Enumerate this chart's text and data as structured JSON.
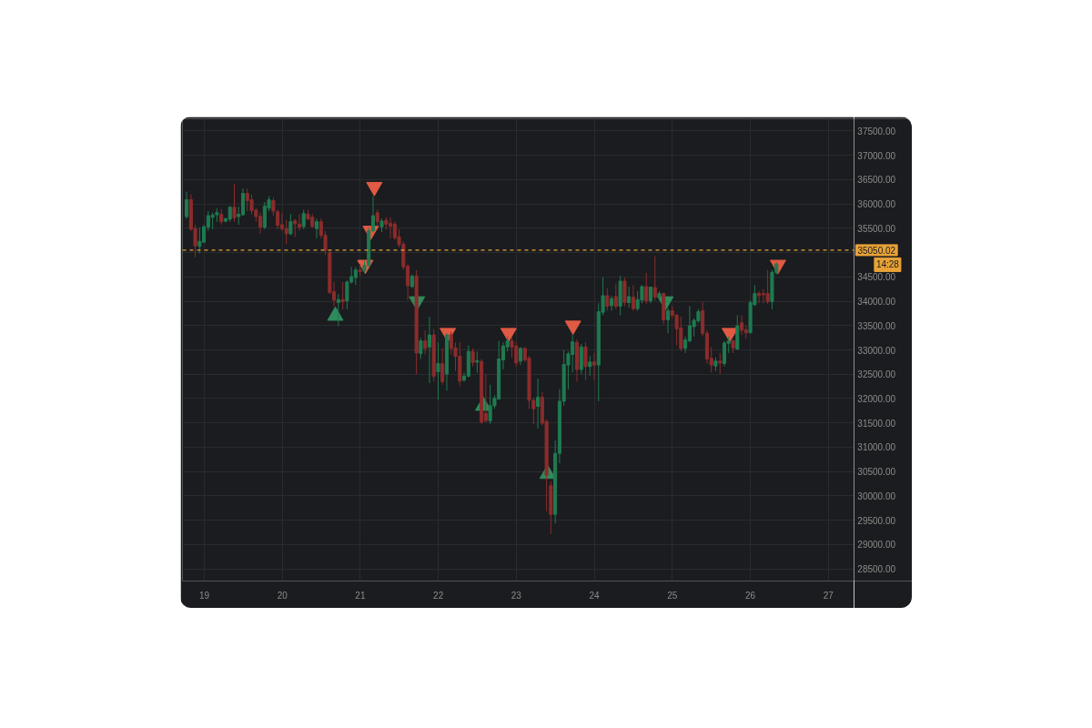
{
  "chart_data": {
    "type": "candlestick",
    "x": [
      18.773,
      18.829,
      18.884,
      18.94,
      18.995,
      19.051,
      19.107,
      19.162,
      19.218,
      19.273,
      19.329,
      19.385,
      19.44,
      19.496,
      19.551,
      19.607,
      19.663,
      19.718,
      19.774,
      19.829,
      19.885,
      19.941,
      19.996,
      20.052,
      20.107,
      20.163,
      20.219,
      20.274,
      20.33,
      20.385,
      20.441,
      20.497,
      20.552,
      20.608,
      20.663,
      20.719,
      20.775,
      20.83,
      20.886,
      20.941,
      20.997,
      21.053,
      21.108,
      21.164,
      21.219,
      21.275,
      21.331,
      21.386,
      21.442,
      21.497,
      21.553,
      21.609,
      21.664,
      21.72,
      21.775,
      21.831,
      21.887,
      21.942,
      21.998,
      22.053,
      22.109,
      22.165,
      22.22,
      22.276,
      22.331,
      22.387,
      22.443,
      22.498,
      22.554,
      22.609,
      22.665,
      22.721,
      22.776,
      22.832,
      22.887,
      22.943,
      22.999,
      23.054,
      23.11,
      23.165,
      23.221,
      23.277,
      23.332,
      23.388,
      23.443,
      23.499,
      23.555,
      23.61,
      23.666,
      23.721,
      23.777,
      23.833,
      23.888,
      23.944,
      23.999,
      24.055,
      24.111,
      24.166,
      24.222,
      24.277,
      24.333,
      24.389,
      24.444,
      24.5,
      24.555,
      24.611,
      24.667,
      24.722,
      24.778,
      24.833,
      24.889,
      24.945,
      25.0,
      25.056,
      25.111,
      25.167,
      25.223,
      25.278,
      25.334,
      25.389,
      25.445,
      25.501,
      25.556,
      25.612,
      25.667,
      25.723,
      25.779,
      25.834,
      25.89,
      25.945,
      26.001,
      26.057,
      26.112,
      26.168,
      26.223,
      26.279,
      26.335
    ],
    "ohlc": [
      [
        35739,
        36254,
        35696,
        36087
      ],
      [
        36087,
        36192,
        35448,
        35479
      ],
      [
        35491,
        35572,
        34902,
        35138
      ],
      [
        35126,
        35510,
        34983,
        35231
      ],
      [
        35213,
        35572,
        35200,
        35529
      ],
      [
        35522,
        35851,
        35448,
        35758
      ],
      [
        35727,
        35820,
        35479,
        35770
      ],
      [
        35776,
        35913,
        35634,
        35820
      ],
      [
        35789,
        35894,
        35572,
        35634
      ],
      [
        35646,
        35720,
        35620,
        35696
      ],
      [
        35684,
        35956,
        35634,
        35932
      ],
      [
        35932,
        36409,
        35634,
        35715
      ],
      [
        35739,
        35944,
        35572,
        35789
      ],
      [
        35777,
        36316,
        35758,
        36217
      ],
      [
        36217,
        36316,
        35851,
        36068
      ],
      [
        36087,
        36192,
        35789,
        35863
      ],
      [
        35870,
        35913,
        35634,
        35739
      ],
      [
        35746,
        35820,
        35386,
        35522
      ],
      [
        35522,
        36037,
        35479,
        35956
      ],
      [
        35913,
        36161,
        35851,
        36087
      ],
      [
        36068,
        36130,
        35758,
        35851
      ],
      [
        35839,
        35882,
        35479,
        35560
      ],
      [
        35572,
        35820,
        35448,
        35491
      ],
      [
        35491,
        35665,
        35169,
        35386
      ],
      [
        35386,
        35789,
        35355,
        35634
      ],
      [
        35653,
        35696,
        35324,
        35591
      ],
      [
        35584,
        35789,
        35448,
        35522
      ],
      [
        35535,
        35882,
        35479,
        35801
      ],
      [
        35789,
        35882,
        35665,
        35696
      ],
      [
        35727,
        35789,
        35510,
        35535
      ],
      [
        35491,
        35696,
        35293,
        35634
      ],
      [
        35634,
        35696,
        35293,
        35355
      ],
      [
        35355,
        35448,
        34952,
        35045
      ],
      [
        34998,
        35045,
        34146,
        34177
      ],
      [
        34196,
        34394,
        33898,
        34022
      ],
      [
        33972,
        34146,
        33495,
        34034
      ],
      [
        34034,
        34394,
        33836,
        33991
      ],
      [
        34010,
        34425,
        33836,
        34394
      ],
      [
        34394,
        34704,
        34363,
        34506
      ],
      [
        34487,
        34704,
        34332,
        34642
      ],
      [
        34642,
        34766,
        34518,
        34611
      ],
      [
        34630,
        34828,
        34580,
        34735
      ],
      [
        34735,
        35510,
        34704,
        35448
      ],
      [
        35448,
        36161,
        35417,
        35758
      ],
      [
        35820,
        35882,
        35541,
        35634
      ],
      [
        35529,
        35696,
        35417,
        35646
      ],
      [
        35665,
        35727,
        35479,
        35584
      ],
      [
        35603,
        35727,
        35293,
        35541
      ],
      [
        35584,
        35634,
        35262,
        35305
      ],
      [
        35324,
        35479,
        35107,
        35163
      ],
      [
        35175,
        35231,
        34642,
        34704
      ],
      [
        34716,
        34766,
        34022,
        34320
      ],
      [
        34301,
        34549,
        34270,
        34518
      ],
      [
        34518,
        34642,
        32503,
        32937
      ],
      [
        32925,
        33247,
        32813,
        33185
      ],
      [
        33185,
        33402,
        32906,
        33030
      ],
      [
        33060,
        33681,
        32317,
        33309
      ],
      [
        33309,
        33433,
        32348,
        32460
      ],
      [
        32553,
        33154,
        31976,
        32720
      ],
      [
        32720,
        33030,
        32286,
        32348
      ],
      [
        32503,
        33340,
        32162,
        33309
      ],
      [
        33309,
        33371,
        32906,
        33030
      ],
      [
        33042,
        33154,
        32565,
        32869
      ],
      [
        32869,
        33154,
        32255,
        32360
      ],
      [
        32379,
        32534,
        32348,
        32460
      ],
      [
        32460,
        33092,
        32441,
        32968
      ],
      [
        32968,
        33030,
        32658,
        32739
      ],
      [
        32751,
        32968,
        32534,
        32782
      ],
      [
        32763,
        32813,
        31480,
        31511
      ],
      [
        31697,
        32503,
        31511,
        31542
      ],
      [
        31542,
        32286,
        31480,
        31852
      ],
      [
        31852,
        32069,
        31790,
        32007
      ],
      [
        31988,
        33185,
        31976,
        32813
      ],
      [
        32794,
        33154,
        32596,
        33080
      ],
      [
        33060,
        33278,
        32968,
        33185
      ],
      [
        33185,
        33278,
        32844,
        33060
      ],
      [
        33080,
        33154,
        32658,
        32732
      ],
      [
        32770,
        33061,
        32689,
        33030
      ],
      [
        33030,
        33061,
        32751,
        32794
      ],
      [
        32832,
        32875,
        31790,
        31964
      ],
      [
        31964,
        32007,
        31480,
        31790
      ],
      [
        31840,
        32410,
        31387,
        32026
      ],
      [
        32026,
        32131,
        31449,
        31492
      ],
      [
        31530,
        31573,
        29682,
        30426
      ],
      [
        30209,
        30302,
        29217,
        29620
      ],
      [
        29620,
        31139,
        29434,
        30873
      ],
      [
        30873,
        32193,
        30674,
        31945
      ],
      [
        31945,
        32999,
        31852,
        32701
      ],
      [
        32689,
        32968,
        32193,
        32918
      ],
      [
        32906,
        33309,
        32534,
        33166
      ],
      [
        33154,
        33216,
        32348,
        32596
      ],
      [
        32596,
        33123,
        32503,
        33061
      ],
      [
        33061,
        33154,
        32379,
        32658
      ],
      [
        32658,
        32875,
        32472,
        32751
      ],
      [
        32751,
        32937,
        32379,
        32689
      ],
      [
        32689,
        33960,
        31945,
        33786
      ],
      [
        33774,
        34487,
        33712,
        34115
      ],
      [
        34115,
        34270,
        33805,
        33898
      ],
      [
        33910,
        34115,
        33805,
        34053
      ],
      [
        34096,
        34363,
        33836,
        33898
      ],
      [
        33898,
        34518,
        33712,
        34413
      ],
      [
        34413,
        34487,
        33898,
        33972
      ],
      [
        33972,
        34301,
        33867,
        34096
      ],
      [
        34084,
        34332,
        33805,
        33848
      ],
      [
        33848,
        34208,
        33805,
        34034
      ],
      [
        34022,
        34332,
        33960,
        34301
      ],
      [
        34301,
        34580,
        33948,
        34010
      ],
      [
        34010,
        34301,
        33960,
        34289
      ],
      [
        34282,
        34921,
        34022,
        34084
      ],
      [
        34084,
        34208,
        34053,
        34158
      ],
      [
        34158,
        34177,
        33526,
        33619
      ],
      [
        33619,
        33867,
        33340,
        33805
      ],
      [
        33805,
        33898,
        33650,
        33712
      ],
      [
        33712,
        33743,
        33092,
        33433
      ],
      [
        33452,
        33681,
        32968,
        33030
      ],
      [
        33030,
        33278,
        32937,
        33204
      ],
      [
        33185,
        33898,
        33154,
        33495
      ],
      [
        33476,
        33650,
        33278,
        33607
      ],
      [
        33600,
        33836,
        33557,
        33786
      ],
      [
        33805,
        33991,
        33278,
        33340
      ],
      [
        33340,
        33402,
        32720,
        32813
      ],
      [
        32825,
        33061,
        32534,
        32689
      ],
      [
        32670,
        32844,
        32565,
        32770
      ],
      [
        32770,
        32937,
        32503,
        32732
      ],
      [
        32720,
        33185,
        32658,
        33142
      ],
      [
        33135,
        33278,
        32937,
        33185
      ],
      [
        33185,
        33216,
        32937,
        33042
      ],
      [
        33018,
        33712,
        32999,
        33495
      ],
      [
        33557,
        33712,
        33309,
        33402
      ],
      [
        33414,
        33495,
        33228,
        33352
      ],
      [
        33352,
        34022,
        33340,
        33972
      ],
      [
        33929,
        34332,
        33898,
        34158
      ],
      [
        34158,
        34208,
        33960,
        34115
      ],
      [
        34158,
        34239,
        33960,
        34134
      ],
      [
        34158,
        34642,
        33948,
        33991
      ],
      [
        33991,
        34642,
        33836,
        34592
      ],
      [
        34592,
        34797,
        34549,
        34766
      ]
    ],
    "colors": [
      "#1f7a50",
      "#8b2c2c",
      "#8b2c2c",
      "#1f7a50",
      "#1f7a50",
      "#1f7a50",
      "#1f7a50",
      "#1f7a50",
      "#8b2c2c",
      "#1f7a50",
      "#1f7a50",
      "#8b2c2c",
      "#1f7a50",
      "#1f7a50",
      "#8b2c2c",
      "#8b2c2c",
      "#8b2c2c",
      "#8b2c2c",
      "#1f7a50",
      "#1f7a50",
      "#8b2c2c",
      "#8b2c2c",
      "#8b2c2c",
      "#8b2c2c",
      "#1f7a50",
      "#8b2c2c",
      "#8b2c2c",
      "#1f7a50",
      "#8b2c2c",
      "#8b2c2c",
      "#1f7a50",
      "#8b2c2c",
      "#8b2c2c",
      "#8b2c2c",
      "#8b2c2c",
      "#1f7a50",
      "#8b2c2c",
      "#1f7a50",
      "#1f7a50",
      "#1f7a50",
      "#8b2c2c",
      "#1f7a50",
      "#1f7a50",
      "#1f7a50",
      "#8b2c2c",
      "#1f7a50",
      "#8b2c2c",
      "#8b2c2c",
      "#8b2c2c",
      "#8b2c2c",
      "#8b2c2c",
      "#8b2c2c",
      "#1f7a50",
      "#8b2c2c",
      "#1f7a50",
      "#8b2c2c",
      "#1f7a50",
      "#8b2c2c",
      "#1f7a50",
      "#8b2c2c",
      "#1f7a50",
      "#8b2c2c",
      "#8b2c2c",
      "#8b2c2c",
      "#1f7a50",
      "#1f7a50",
      "#8b2c2c",
      "#1f7a50",
      "#8b2c2c",
      "#8b2c2c",
      "#1f7a50",
      "#1f7a50",
      "#1f7a50",
      "#1f7a50",
      "#1f7a50",
      "#8b2c2c",
      "#8b2c2c",
      "#1f7a50",
      "#8b2c2c",
      "#8b2c2c",
      "#8b2c2c",
      "#1f7a50",
      "#8b2c2c",
      "#8b2c2c",
      "#8b2c2c",
      "#1f7a50",
      "#1f7a50",
      "#1f7a50",
      "#1f7a50",
      "#1f7a50",
      "#8b2c2c",
      "#1f7a50",
      "#8b2c2c",
      "#1f7a50",
      "#8b2c2c",
      "#1f7a50",
      "#1f7a50",
      "#8b2c2c",
      "#1f7a50",
      "#8b2c2c",
      "#1f7a50",
      "#8b2c2c",
      "#1f7a50",
      "#8b2c2c",
      "#1f7a50",
      "#1f7a50",
      "#8b2c2c",
      "#1f7a50",
      "#8b2c2c",
      "#1f7a50",
      "#8b2c2c",
      "#1f7a50",
      "#8b2c2c",
      "#8b2c2c",
      "#8b2c2c",
      "#1f7a50",
      "#1f7a50",
      "#1f7a50",
      "#1f7a50",
      "#8b2c2c",
      "#8b2c2c",
      "#8b2c2c",
      "#1f7a50",
      "#8b2c2c",
      "#1f7a50",
      "#1f7a50",
      "#8b2c2c",
      "#1f7a50",
      "#8b2c2c",
      "#8b2c2c",
      "#1f7a50",
      "#1f7a50",
      "#8b2c2c",
      "#8b2c2c",
      "#8b2c2c",
      "#1f7a50",
      "#1f7a50"
    ],
    "series": [
      {
        "type": "scatter",
        "marker": "triangle",
        "color": "#2f8a5c",
        "x": [
          20.68,
          21.727,
          22.576,
          23.401,
          24.913
        ],
        "values": [
          33700,
          34000,
          31850,
          30450,
          34000
        ]
      },
      {
        "type": "scatter",
        "marker": "triangle",
        "color": "#e05a44",
        "x": [
          21.18,
          21.134,
          21.064,
          22.122,
          22.901,
          23.727,
          25.738,
          26.355
        ],
        "values": [
          36350,
          35450,
          34750,
          33350,
          33350,
          33500,
          33350,
          34750
        ]
      }
    ],
    "xlim": [
      18.72,
      27.33
    ],
    "ylim": [
      28250,
      37750
    ],
    "xticks": [
      19,
      20,
      21,
      22,
      23,
      24,
      25,
      26,
      27
    ],
    "yticks": [
      {
        "value": 28500,
        "label": "28500.00"
      },
      {
        "value": 29000,
        "label": "29000.00"
      },
      {
        "value": 29500,
        "label": "29500.00"
      },
      {
        "value": 30000,
        "label": "30000.00"
      },
      {
        "value": 30500,
        "label": "30500.00"
      },
      {
        "value": 31000,
        "label": "31000.00"
      },
      {
        "value": 31500,
        "label": "31500.00"
      },
      {
        "value": 32000,
        "label": "32000.00"
      },
      {
        "value": 32500,
        "label": "32500.00"
      },
      {
        "value": 33000,
        "label": "33000.00"
      },
      {
        "value": 33500,
        "label": "33500.00"
      },
      {
        "value": 34000,
        "label": "34000.00"
      },
      {
        "value": 34500,
        "label": "34500.00"
      },
      {
        "value": 35000,
        "label": null
      },
      {
        "value": 35500,
        "label": "35500.00"
      },
      {
        "value": 36000,
        "label": "36000.00"
      },
      {
        "value": 36500,
        "label": "36500.00"
      },
      {
        "value": 37000,
        "label": "37000.00"
      },
      {
        "value": 37500,
        "label": "37500.00"
      }
    ],
    "grid": true,
    "ref_lines": [
      {
        "axis": "y",
        "value": 35050.02,
        "label": "35050.02",
        "color": "#e8a236",
        "line_style": "dashed"
      }
    ],
    "annotations": [
      "14:28"
    ]
  }
}
